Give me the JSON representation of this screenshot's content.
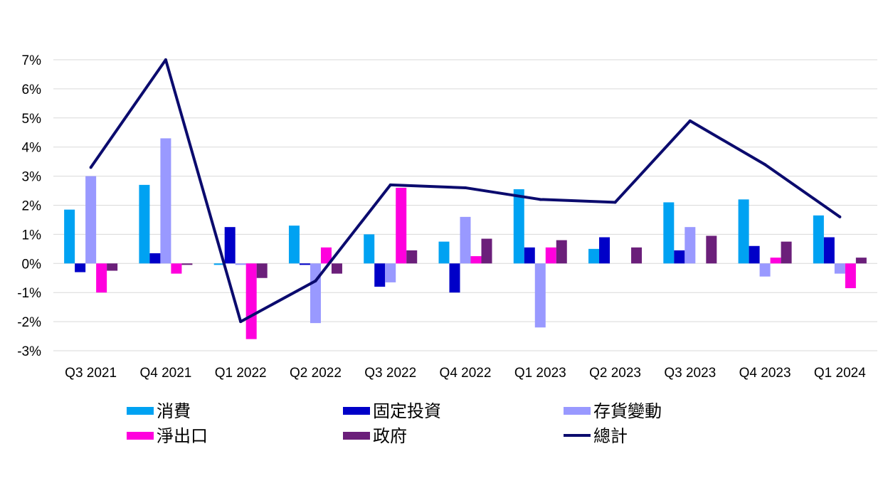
{
  "chart_data": {
    "type": "bar",
    "categories": [
      "Q3 2021",
      "Q4 2021",
      "Q1 2022",
      "Q2 2022",
      "Q3 2022",
      "Q4 2022",
      "Q1 2023",
      "Q2 2023",
      "Q3 2023",
      "Q4 2023",
      "Q1 2024"
    ],
    "y_tick_labels": [
      "7%",
      "6%",
      "5%",
      "4%",
      "3%",
      "2%",
      "1%",
      "0%",
      "-1%",
      "-2%",
      "-3%"
    ],
    "y_ticks": [
      7,
      6,
      5,
      4,
      3,
      2,
      1,
      0,
      -1,
      -2,
      -3
    ],
    "ylim": [
      -3,
      7
    ],
    "grid": true,
    "legend_position": "bottom",
    "series": [
      {
        "name": "消費",
        "kind": "bar",
        "color": "#00a2f2",
        "values": [
          1.85,
          2.7,
          -0.05,
          1.3,
          1.0,
          0.75,
          2.55,
          0.5,
          2.1,
          2.2,
          1.65
        ]
      },
      {
        "name": "固定投資",
        "kind": "bar",
        "color": "#0000c8",
        "values": [
          -0.3,
          0.35,
          1.25,
          -0.05,
          -0.8,
          -1.0,
          0.55,
          0.9,
          0.45,
          0.6,
          0.9
        ]
      },
      {
        "name": "存貨變動",
        "kind": "bar",
        "color": "#9999ff",
        "values": [
          3.0,
          4.3,
          -0.05,
          -2.05,
          -0.65,
          1.6,
          -2.2,
          0.0,
          1.25,
          -0.45,
          -0.35
        ]
      },
      {
        "name": "淨出口",
        "kind": "bar",
        "color": "#ff00dd",
        "values": [
          -1.0,
          -0.35,
          -2.6,
          0.55,
          2.6,
          0.25,
          0.55,
          0.0,
          0.0,
          0.2,
          -0.85
        ]
      },
      {
        "name": "政府",
        "kind": "bar",
        "color": "#6b1f7a",
        "values": [
          -0.25,
          -0.05,
          -0.5,
          -0.35,
          0.45,
          0.85,
          0.8,
          0.55,
          0.95,
          0.75,
          0.2
        ]
      },
      {
        "name": "總計",
        "kind": "line",
        "color": "#0b0b6e",
        "values": [
          3.3,
          7.0,
          -2.0,
          -0.6,
          2.7,
          2.6,
          2.2,
          2.1,
          4.9,
          3.4,
          1.6
        ]
      }
    ]
  }
}
